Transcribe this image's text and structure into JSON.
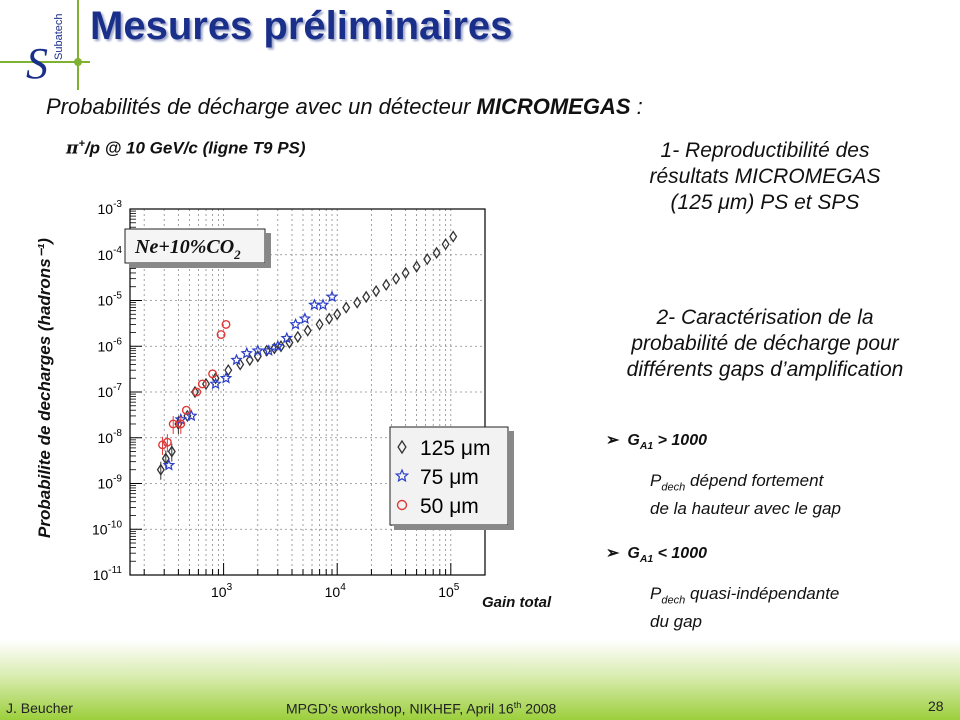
{
  "header": {
    "title": "Mesures préliminaires",
    "logo_text": "Subatech"
  },
  "subtitle": {
    "prefix": "Probabilités de décharge avec un détecteur ",
    "bold": "MICROMEGAS",
    "suffix": " :"
  },
  "beam": {
    "symbol": "π",
    "sup": "+",
    "rest": "/p @ 10 GeV/c (ligne T9 PS)"
  },
  "points": {
    "p1_lines": [
      "1- Reproductibilité des",
      "résultats MICROMEGAS",
      "(125 μm) PS et SPS"
    ],
    "p2_lines": [
      "2- Caractérisation de la",
      "probabilité de décharge pour",
      "différents gaps d’amplification"
    ]
  },
  "bullets": [
    {
      "arrow": "➢",
      "g": "G",
      "g_sub": "A1",
      "rest": " > 1000",
      "note_p": "P",
      "note_sub": "dech",
      "note_line1": " dépend fortement",
      "note_line2": "de la hauteur avec le gap"
    },
    {
      "arrow": "➢",
      "g": "G",
      "g_sub": "A1",
      "rest": " < 1000",
      "note_p": "P",
      "note_sub": "dech",
      "note_line1": " quasi-indépendante",
      "note_line2": "du gap"
    }
  ],
  "footer": {
    "author": "J. Beucher",
    "event_prefix": "MPGD’s workshop, NIKHEF,  April 16",
    "event_sup": "th",
    "event_suffix": " 2008",
    "page": "28"
  },
  "chart_data": {
    "type": "scatter",
    "title": "",
    "xlabel": "Gain total",
    "ylabel": "Probabilite de decharges (hadrons⁻¹)",
    "x_scale": "log",
    "y_scale": "log",
    "xlim": [
      150,
      200000
    ],
    "ylim": [
      1e-11,
      0.001
    ],
    "x_tick_labels": [
      {
        "value": 1000,
        "mantissa": "10",
        "exp": "3"
      },
      {
        "value": 10000,
        "mantissa": "10",
        "exp": "4"
      },
      {
        "value": 100000,
        "mantissa": "10",
        "exp": "5"
      }
    ],
    "y_tick_labels": [
      {
        "value": 0.001,
        "mantissa": "10",
        "exp": "-3"
      },
      {
        "value": 0.0001,
        "mantissa": "10",
        "exp": "-4"
      },
      {
        "value": 1e-05,
        "mantissa": "10",
        "exp": "-5"
      },
      {
        "value": 1e-06,
        "mantissa": "10",
        "exp": "-6"
      },
      {
        "value": 1e-07,
        "mantissa": "10",
        "exp": "-7"
      },
      {
        "value": 1e-08,
        "mantissa": "10",
        "exp": "-8"
      },
      {
        "value": 1e-09,
        "mantissa": "10",
        "exp": "-9"
      },
      {
        "value": 1e-10,
        "mantissa": "10",
        "exp": "-10"
      },
      {
        "value": 1e-11,
        "mantissa": "10",
        "exp": "-11"
      }
    ],
    "grid": true,
    "annotation": {
      "text": "Ne+10%CO",
      "sub": "2"
    },
    "legend_position": "bottom-right",
    "series": [
      {
        "name": "125 μm",
        "marker": "diamond",
        "color": "#333333",
        "x": [
          280,
          310,
          350,
          400,
          480,
          560,
          700,
          850,
          1100,
          1400,
          1700,
          2000,
          2400,
          2800,
          3200,
          3800,
          4500,
          5500,
          7000,
          8500,
          10000,
          12000,
          15000,
          18000,
          22000,
          27000,
          33000,
          40000,
          50000,
          62000,
          75000,
          90000,
          105000
        ],
        "y": [
          2e-09,
          3.5e-09,
          5e-09,
          2e-08,
          3e-08,
          1e-07,
          1.5e-07,
          2e-07,
          3e-07,
          4e-07,
          5e-07,
          6e-07,
          8e-07,
          9e-07,
          1e-06,
          1.2e-06,
          1.6e-06,
          2.2e-06,
          3e-06,
          4e-06,
          5e-06,
          7e-06,
          9e-06,
          1.2e-05,
          1.6e-05,
          2.2e-05,
          3e-05,
          4e-05,
          5.5e-05,
          8e-05,
          0.00011,
          0.00017,
          0.00025
        ]
      },
      {
        "name": "75 μm",
        "marker": "star",
        "color": "#2b3ec9",
        "x": [
          330,
          420,
          520,
          850,
          1050,
          1300,
          1600,
          2000,
          2500,
          3000,
          3600,
          4300,
          5200,
          6300,
          7500,
          9000
        ],
        "y": [
          2.5e-09,
          2.5e-08,
          3e-08,
          1.5e-07,
          2e-07,
          5e-07,
          7e-07,
          8e-07,
          8e-07,
          1e-06,
          1.5e-06,
          3e-06,
          4e-06,
          8e-06,
          8e-06,
          1.2e-05
        ]
      },
      {
        "name": "50 μm",
        "marker": "circle",
        "color": "#e03a3a",
        "x": [
          290,
          320,
          360,
          420,
          470,
          580,
          650,
          800,
          950,
          1050
        ],
        "y": [
          7e-09,
          8e-09,
          2e-08,
          2e-08,
          4e-08,
          1e-07,
          1.5e-07,
          2.5e-07,
          1.8e-06,
          3e-06
        ]
      }
    ]
  }
}
